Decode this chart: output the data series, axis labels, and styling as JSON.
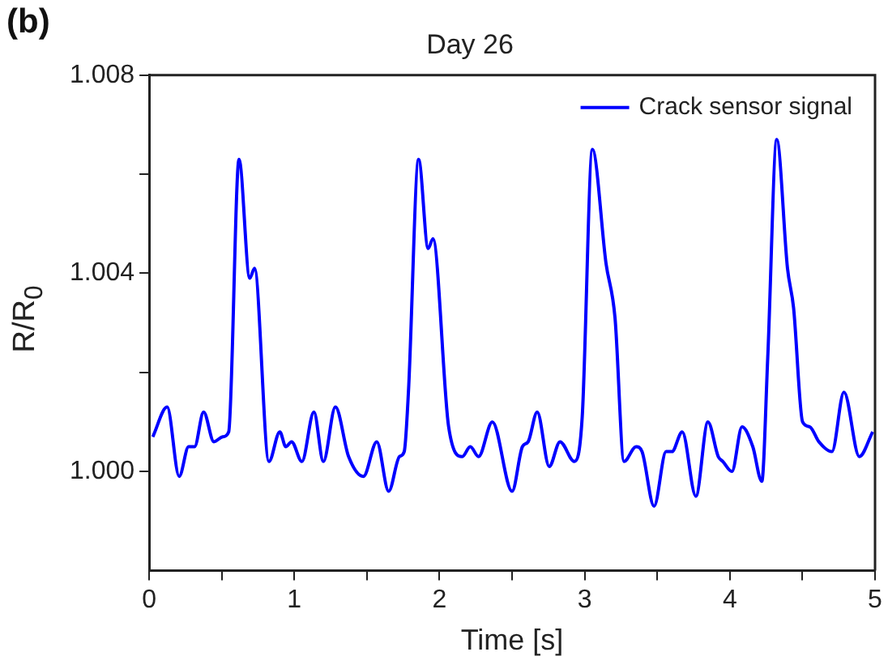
{
  "chart_data": {
    "type": "line",
    "title": "Day 26",
    "xlabel": "Time [s]",
    "ylabel": "R/R$_{0}$",
    "annotations": [
      "(b)"
    ],
    "xlim": [
      0,
      5
    ],
    "xticks": [
      0,
      {
        "value": 0.5,
        "label": null
      },
      1,
      {
        "value": 1.5,
        "label": null
      },
      2,
      {
        "value": 2.5,
        "label": null
      },
      3,
      {
        "value": 3.5,
        "label": null
      },
      4,
      {
        "value": 4.5,
        "label": null
      },
      5
    ],
    "ylim": [
      0.998,
      1.008
    ],
    "yticks": [
      {
        "value": 1.0,
        "label": "1.000"
      },
      {
        "value": 1.002,
        "label": null
      },
      {
        "value": 1.004,
        "label": "1.004"
      },
      {
        "value": 1.006,
        "label": null
      },
      {
        "value": 1.008,
        "label": "1.008"
      }
    ],
    "grid": false,
    "legend": "top right",
    "marker": "none",
    "line_style": "solid",
    "series": [
      {
        "name": "Crack sensor signal",
        "color": "#0000ff",
        "x": [
          0.025,
          0.124,
          0.207,
          0.272,
          0.313,
          0.375,
          0.446,
          0.507,
          0.548,
          0.619,
          0.693,
          0.726,
          0.825,
          0.9,
          0.941,
          0.981,
          1.052,
          1.135,
          1.2,
          1.283,
          1.374,
          1.476,
          1.568,
          1.65,
          1.724,
          1.757,
          1.786,
          1.856,
          1.922,
          1.955,
          2.063,
          2.157,
          2.212,
          2.269,
          2.364,
          2.5,
          2.571,
          2.611,
          2.673,
          2.756,
          2.83,
          2.929,
          2.983,
          3.053,
          3.147,
          3.209,
          3.271,
          3.354,
          3.395,
          3.478,
          3.561,
          3.601,
          3.672,
          3.766,
          3.849,
          3.92,
          3.952,
          4.014,
          4.084,
          4.158,
          4.22,
          4.261,
          4.323,
          4.397,
          4.439,
          4.501,
          4.551,
          4.613,
          4.703,
          4.786,
          4.892,
          4.984
        ],
        "values": [
          1.0007,
          1.0013,
          0.9999,
          1.0005,
          1.0005,
          1.0012,
          1.0006,
          1.0007,
          1.0008,
          1.0063,
          1.0039,
          1.0041,
          1.0002,
          1.0008,
          1.0005,
          1.0006,
          1.0002,
          1.0012,
          1.0002,
          1.0013,
          1.0003,
          0.9999,
          1.0006,
          0.9996,
          1.0003,
          1.0004,
          1.0016,
          1.0063,
          1.0045,
          1.0047,
          1.0009,
          1.0003,
          1.0005,
          1.0003,
          1.001,
          0.9996,
          1.0005,
          1.0006,
          1.0012,
          1.0001,
          1.0006,
          1.0002,
          1.0011,
          1.0065,
          1.0042,
          1.0031,
          1.0002,
          1.0005,
          1.0004,
          0.9993,
          1.0004,
          1.0004,
          1.0008,
          0.9995,
          1.001,
          1.0003,
          1.0002,
          1.0,
          1.0009,
          1.0005,
          0.9998,
          1.0023,
          1.0067,
          1.0041,
          1.0033,
          1.001,
          1.0009,
          1.0006,
          1.0004,
          1.0016,
          1.0003,
          1.0008
        ]
      }
    ]
  }
}
